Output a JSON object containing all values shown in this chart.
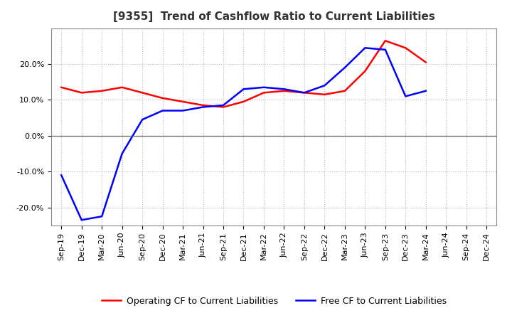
{
  "title": "[9355]  Trend of Cashflow Ratio to Current Liabilities",
  "x_labels": [
    "Sep-19",
    "Dec-19",
    "Mar-20",
    "Jun-20",
    "Sep-20",
    "Dec-20",
    "Mar-21",
    "Jun-21",
    "Sep-21",
    "Dec-21",
    "Mar-22",
    "Jun-22",
    "Sep-22",
    "Dec-22",
    "Mar-23",
    "Jun-23",
    "Sep-23",
    "Dec-23",
    "Mar-24",
    "Jun-24",
    "Sep-24",
    "Dec-24"
  ],
  "operating_cf": [
    13.5,
    12.0,
    12.5,
    13.5,
    12.0,
    10.5,
    9.5,
    8.5,
    8.0,
    9.5,
    12.0,
    12.5,
    12.0,
    11.5,
    12.5,
    18.0,
    26.5,
    24.5,
    20.5,
    null,
    null,
    null
  ],
  "free_cf": [
    -11.0,
    -23.5,
    -22.5,
    -5.0,
    4.5,
    7.0,
    7.0,
    8.0,
    8.5,
    13.0,
    13.5,
    13.0,
    12.0,
    14.0,
    19.0,
    24.5,
    24.0,
    11.0,
    12.5,
    null,
    null,
    null
  ],
  "ylim": [
    -25,
    30
  ],
  "yticks": [
    -20,
    -10,
    0,
    10,
    20
  ],
  "operating_color": "#ff0000",
  "free_color": "#0000ff",
  "background_color": "#ffffff",
  "grid_color": "#b0b0b0",
  "legend_labels": [
    "Operating CF to Current Liabilities",
    "Free CF to Current Liabilities"
  ],
  "title_fontsize": 11,
  "tick_fontsize": 8,
  "legend_fontsize": 9
}
